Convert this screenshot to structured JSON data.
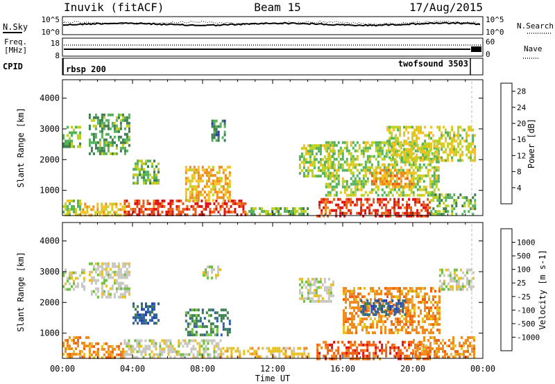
{
  "header": {
    "station": "Inuvik (fitACF)",
    "beam": "Beam 15",
    "date": "17/Aug/2015"
  },
  "noise_panel": {
    "left_label": "N.Sky",
    "left_ticks": [
      "10^5",
      "10^0"
    ],
    "right_ticks": [
      "10^5",
      "10^0"
    ],
    "right_label": "N.Search"
  },
  "freq_panel": {
    "left_label_1": "Freq.",
    "left_label_2": "[MHz]",
    "left_ticks": [
      "18",
      "8"
    ],
    "right_ticks": [
      "60",
      "0"
    ],
    "right_label": "Nave"
  },
  "cpid": {
    "label": "CPID",
    "left_mode": "rbsp 200",
    "right_mode": "twofsound 3503"
  },
  "chart_data": [
    {
      "type": "heatmap",
      "title": "",
      "xlabel": "Time UT",
      "ylabel": "Slant Range [km]",
      "x_ticks": [
        "00:00",
        "04:00",
        "08:00",
        "12:00",
        "16:00",
        "20:00",
        "00:00"
      ],
      "y_ticks": [
        "1000",
        "2000",
        "3000",
        "4000"
      ],
      "xlim_hours": [
        0,
        24
      ],
      "ylim_km": [
        180,
        4600
      ],
      "colorbar": {
        "label": "Power [dB]",
        "ticks": [
          "4",
          "8",
          "12",
          "16",
          "20",
          "24",
          "28"
        ],
        "range": [
          0,
          30
        ],
        "colors": [
          "#1010e0",
          "#2a3fa0",
          "#3f7f4f",
          "#55b35b",
          "#c0d020",
          "#f7c020",
          "#f08a1a",
          "#e85a16",
          "#e01010"
        ]
      },
      "features": [
        {
          "t0": 0.0,
          "t1": 1.0,
          "r0": 200,
          "r1": 700,
          "value": 14
        },
        {
          "t0": 0.0,
          "t1": 1.0,
          "r0": 2400,
          "r1": 3100,
          "value": 12
        },
        {
          "t0": 1.0,
          "t1": 3.5,
          "r0": 200,
          "r1": 600,
          "value": 18
        },
        {
          "t0": 1.5,
          "t1": 3.8,
          "r0": 2200,
          "r1": 3500,
          "value": 10
        },
        {
          "t0": 3.5,
          "t1": 10.5,
          "r0": 200,
          "r1": 700,
          "value": 28
        },
        {
          "t0": 4.0,
          "t1": 5.5,
          "r0": 1200,
          "r1": 2000,
          "value": 12
        },
        {
          "t0": 7.0,
          "t1": 9.5,
          "r0": 700,
          "r1": 1800,
          "value": 20
        },
        {
          "t0": 8.5,
          "t1": 9.3,
          "r0": 2600,
          "r1": 3300,
          "value": 8
        },
        {
          "t0": 10.5,
          "t1": 14.0,
          "r0": 200,
          "r1": 450,
          "value": 12
        },
        {
          "t0": 13.5,
          "t1": 15.5,
          "r0": 1500,
          "r1": 2500,
          "value": 14
        },
        {
          "t0": 14.5,
          "t1": 21.0,
          "r0": 200,
          "r1": 750,
          "value": 28
        },
        {
          "t0": 15.0,
          "t1": 21.5,
          "r0": 800,
          "r1": 2600,
          "value": 14
        },
        {
          "t0": 17.5,
          "t1": 20.0,
          "r0": 1100,
          "r1": 1700,
          "value": 22
        },
        {
          "t0": 18.5,
          "t1": 23.5,
          "r0": 2000,
          "r1": 3100,
          "value": 16
        },
        {
          "t0": 21.0,
          "t1": 23.5,
          "r0": 200,
          "r1": 900,
          "value": 12
        }
      ]
    },
    {
      "type": "heatmap",
      "title": "",
      "xlabel": "Time UT",
      "ylabel": "Slant Range [km]",
      "x_ticks": [
        "00:00",
        "04:00",
        "08:00",
        "12:00",
        "16:00",
        "20:00",
        "00:00"
      ],
      "y_ticks": [
        "1000",
        "2000",
        "3000",
        "4000"
      ],
      "xlim_hours": [
        0,
        24
      ],
      "ylim_km": [
        180,
        4600
      ],
      "colorbar": {
        "label": "Velocity [m s-1]",
        "ticks": [
          "1000",
          "500",
          "100",
          "25",
          "-25",
          "-100",
          "-500",
          "-1000"
        ],
        "colors": [
          "#1f3fbf",
          "#2f5fa0",
          "#3d8050",
          "#70c040",
          "#c8c8c0",
          "#e8c020",
          "#f08a1a",
          "#f06010",
          "#e01010"
        ]
      },
      "features": [
        {
          "t0": 0.0,
          "t1": 1.5,
          "r0": 200,
          "r1": 900,
          "value": -300
        },
        {
          "t0": 0.0,
          "t1": 1.2,
          "r0": 2400,
          "r1": 3100,
          "value": 0
        },
        {
          "t0": 1.5,
          "t1": 3.5,
          "r0": 200,
          "r1": 700,
          "value": -150
        },
        {
          "t0": 1.5,
          "t1": 3.8,
          "r0": 2200,
          "r1": 3300,
          "value": 0
        },
        {
          "t0": 3.5,
          "t1": 9.0,
          "r0": 200,
          "r1": 800,
          "value": 0
        },
        {
          "t0": 4.0,
          "t1": 5.5,
          "r0": 1300,
          "r1": 2000,
          "value": 400
        },
        {
          "t0": 7.0,
          "t1": 9.5,
          "r0": 900,
          "r1": 1800,
          "value": 120
        },
        {
          "t0": 8.0,
          "t1": 9.0,
          "r0": 2800,
          "r1": 3200,
          "value": 0
        },
        {
          "t0": 9.0,
          "t1": 14.0,
          "r0": 200,
          "r1": 550,
          "value": -60
        },
        {
          "t0": 13.5,
          "t1": 15.5,
          "r0": 2000,
          "r1": 2800,
          "value": 0
        },
        {
          "t0": 14.5,
          "t1": 21.0,
          "r0": 200,
          "r1": 750,
          "value": -500
        },
        {
          "t0": 16.0,
          "t1": 21.5,
          "r0": 1000,
          "r1": 2500,
          "value": -150
        },
        {
          "t0": 17.0,
          "t1": 19.5,
          "r0": 1600,
          "r1": 2100,
          "value": 600
        },
        {
          "t0": 20.0,
          "t1": 23.5,
          "r0": 200,
          "r1": 900,
          "value": -100
        },
        {
          "t0": 21.5,
          "t1": 23.5,
          "r0": 2400,
          "r1": 3100,
          "value": 0
        }
      ]
    }
  ]
}
